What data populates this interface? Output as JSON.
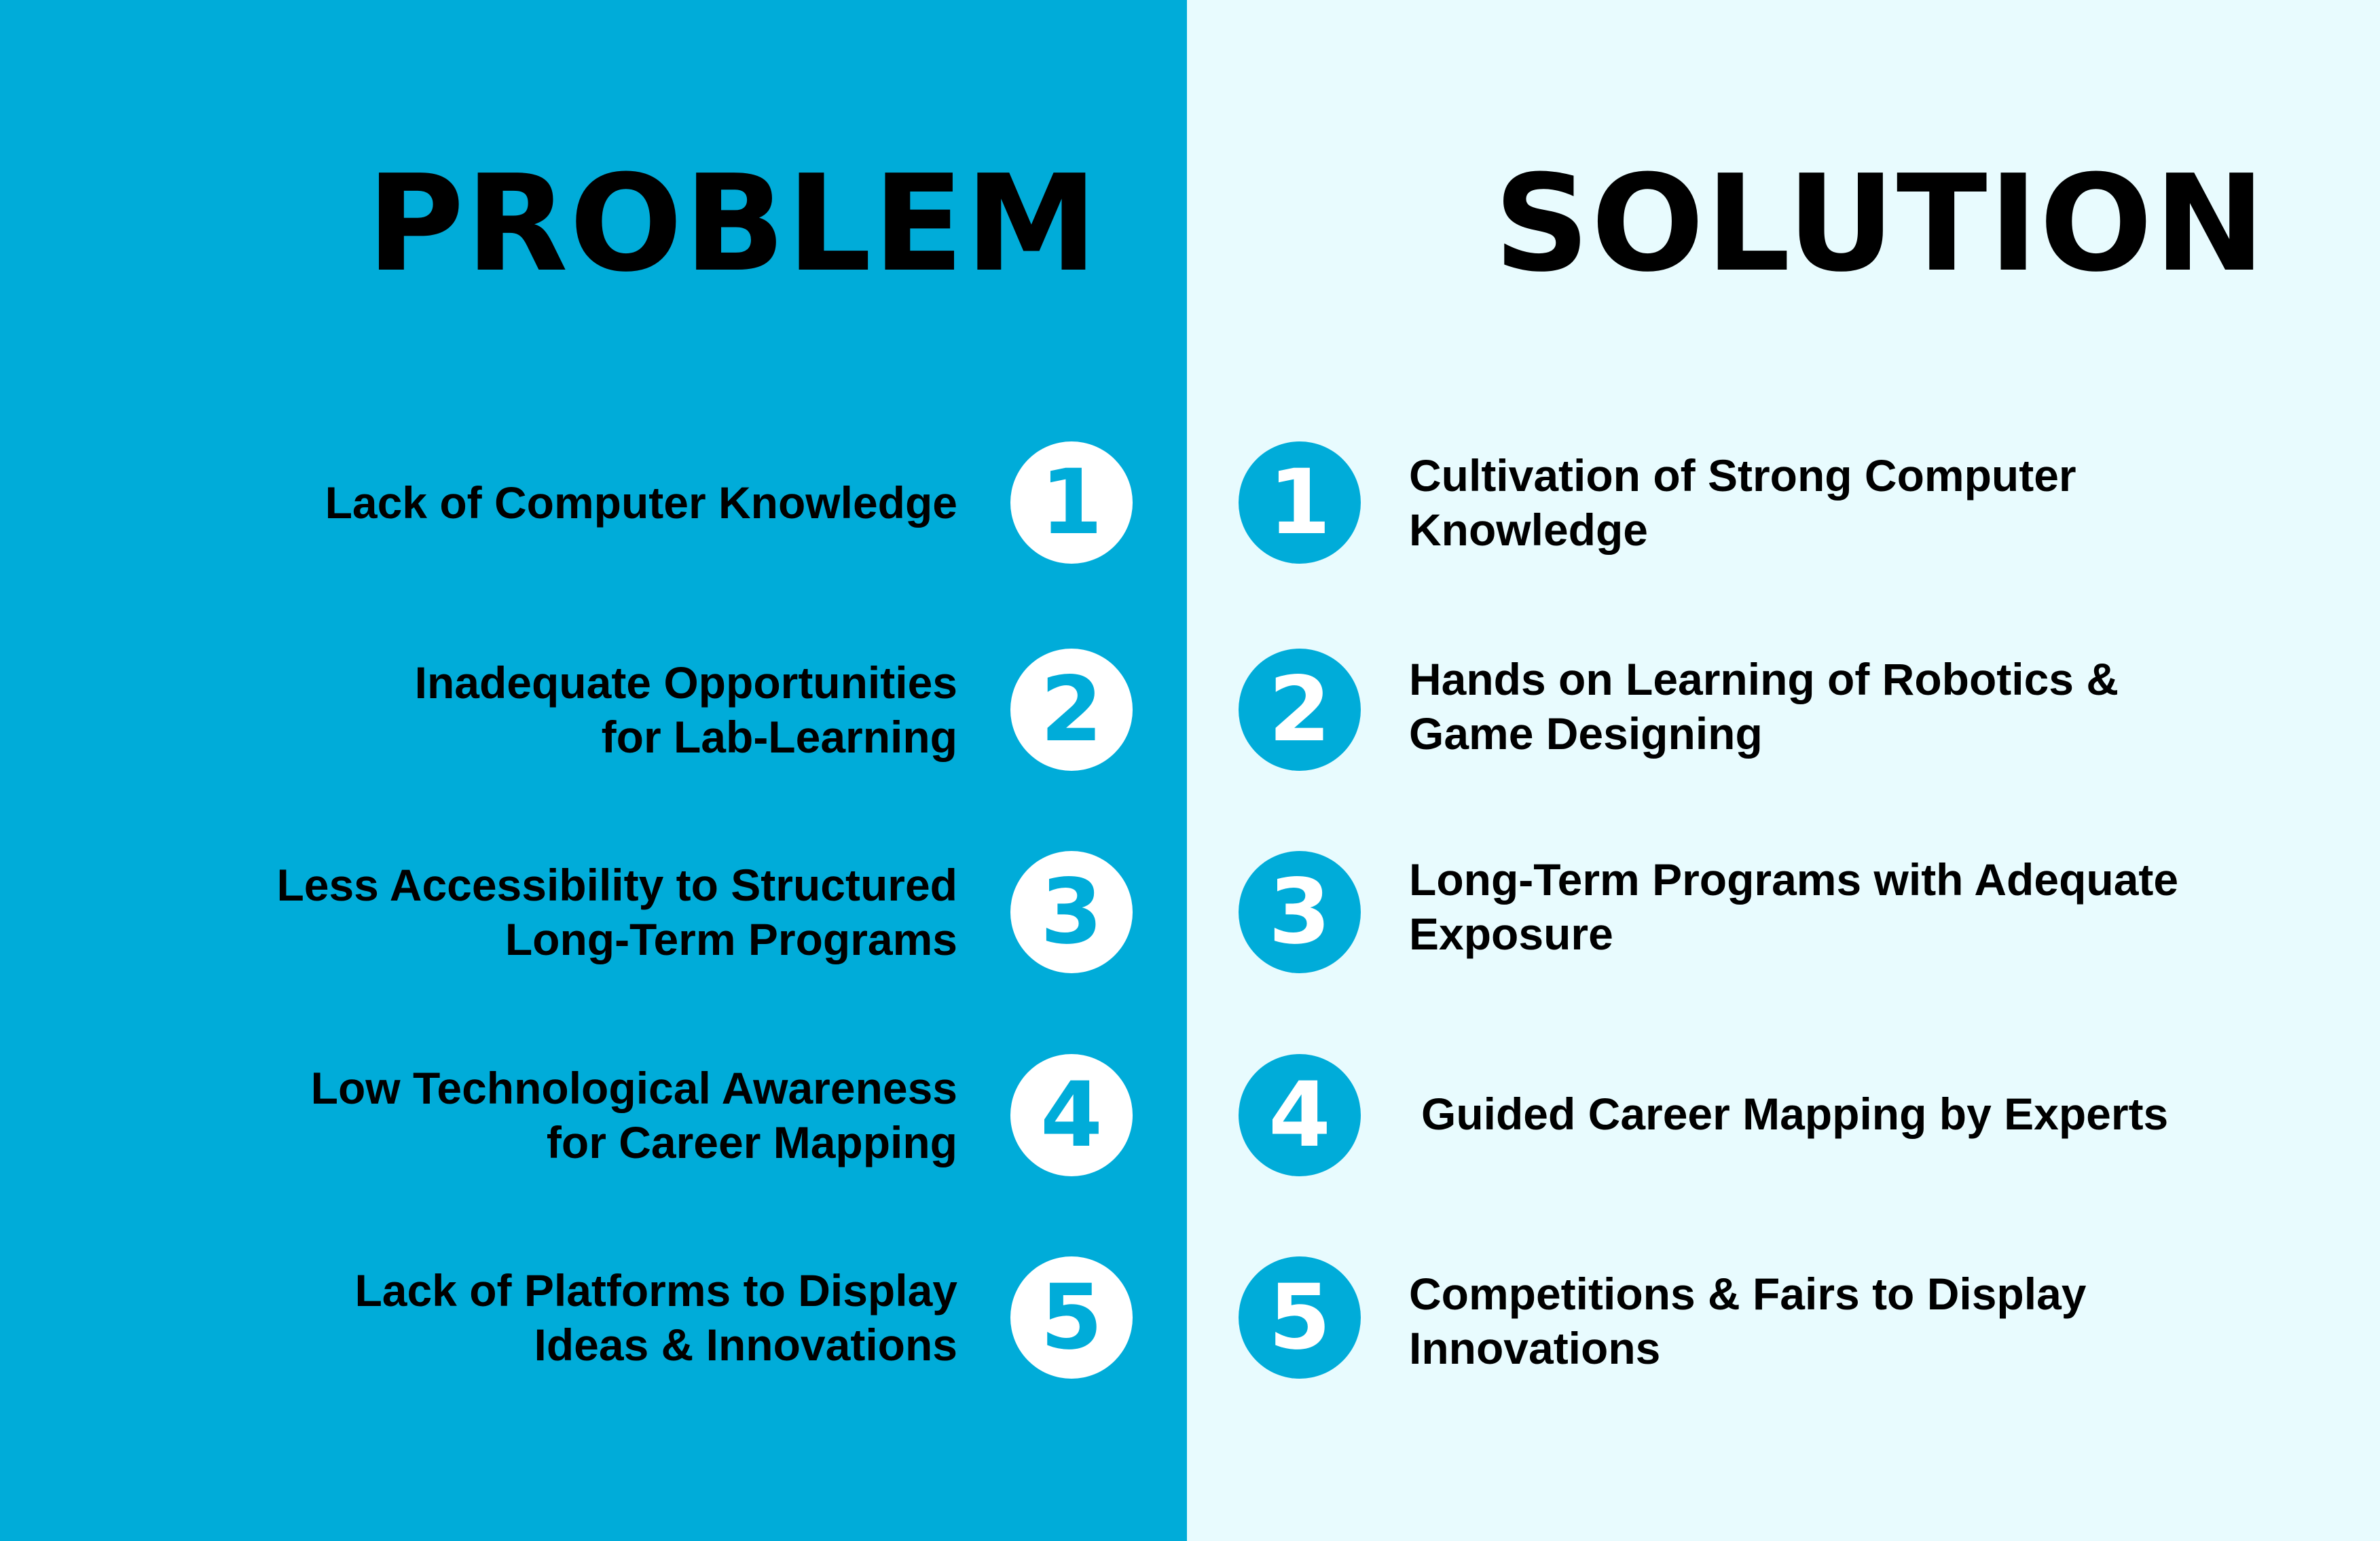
{
  "problem": {
    "heading": "PROBLEM",
    "items": [
      {
        "number": "1",
        "text": "Lack of Computer Knowledge"
      },
      {
        "number": "2",
        "text": "Inadequate Opportunities for Lab-Learning"
      },
      {
        "number": "3",
        "text": "Less Accessibility to Structured Long-Term Programs"
      },
      {
        "number": "4",
        "text": "Low Technological Awareness for Career Mapping"
      },
      {
        "number": "5",
        "text": "Lack of Platforms to Display Ideas & Innovations"
      }
    ]
  },
  "solution": {
    "heading": "SOLUTION",
    "items": [
      {
        "number": "1",
        "text": "Cultivation of Strong Computer Knowledge"
      },
      {
        "number": "2",
        "text": "Hands on Learning of Robotics & Game Designing"
      },
      {
        "number": "3",
        "text": "Long-Term Programs with Adequate Exposure"
      },
      {
        "number": "4",
        "text": "Guided Career Mapping by Experts"
      },
      {
        "number": "5",
        "text": "Competitions & Fairs to Display Innovations"
      }
    ]
  },
  "colors": {
    "problem_background": "#00acd9",
    "solution_background": "#e8fbfe",
    "heading_text": "#000000",
    "circle_light": "#ffffff",
    "circle_accent": "#00acd9"
  }
}
